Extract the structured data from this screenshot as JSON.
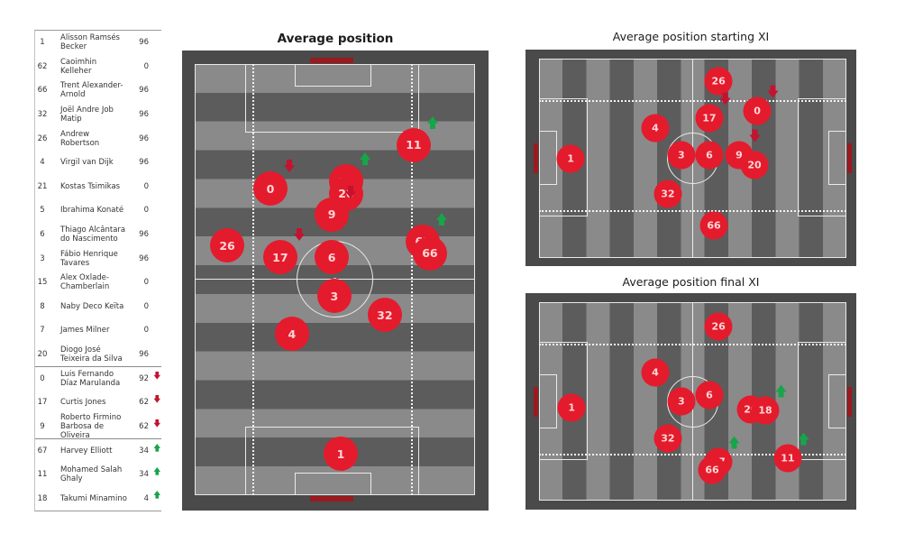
{
  "colors": {
    "circle": "#e41b2c",
    "circle_text": "#ffd6d6",
    "up_arrow": "#17a54a",
    "down_arrow": "#c41230",
    "goal_bar": "#9a1a1f"
  },
  "roster": {
    "rows": [
      {
        "num": "1",
        "name": "Alisson Ramsés Becker",
        "min": "96",
        "trend": "",
        "group": "squad"
      },
      {
        "num": "62",
        "name": "Caoimhin Kelleher",
        "min": "0",
        "trend": "",
        "group": "squad"
      },
      {
        "num": "66",
        "name": "Trent Alexander-Arnold",
        "min": "96",
        "trend": "",
        "group": "squad"
      },
      {
        "num": "32",
        "name": "Joël Andre Job Matip",
        "min": "96",
        "trend": "",
        "group": "squad"
      },
      {
        "num": "26",
        "name": "Andrew Robertson",
        "min": "96",
        "trend": "",
        "group": "squad"
      },
      {
        "num": "4",
        "name": "Virgil van Dijk",
        "min": "96",
        "trend": "",
        "group": "squad"
      },
      {
        "num": "21",
        "name": "Kostas Tsimikas",
        "min": "0",
        "trend": "",
        "group": "squad"
      },
      {
        "num": "5",
        "name": "Ibrahima Konaté",
        "min": "0",
        "trend": "",
        "group": "squad"
      },
      {
        "num": "6",
        "name": "Thiago Alcântara do Nascimento",
        "min": "96",
        "trend": "",
        "group": "squad"
      },
      {
        "num": "3",
        "name": "Fábio Henrique Tavares",
        "min": "96",
        "trend": "",
        "group": "squad"
      },
      {
        "num": "15",
        "name": "Alex Oxlade-Chamberlain",
        "min": "0",
        "trend": "",
        "group": "squad"
      },
      {
        "num": "8",
        "name": "Naby Deco Keïta",
        "min": "0",
        "trend": "",
        "group": "squad"
      },
      {
        "num": "7",
        "name": "James Milner",
        "min": "0",
        "trend": "",
        "group": "squad"
      },
      {
        "num": "20",
        "name": "Diogo José Teixeira da Silva",
        "min": "96",
        "trend": "",
        "group": "squad"
      },
      {
        "num": "0",
        "name": "Luis Fernando Díaz Marulanda",
        "min": "92",
        "trend": "down",
        "group": "subbed-off"
      },
      {
        "num": "17",
        "name": "Curtis Jones",
        "min": "62",
        "trend": "down",
        "group": "subbed-off"
      },
      {
        "num": "9",
        "name": "Roberto Firmino Barbosa de Oliveira",
        "min": "62",
        "trend": "down",
        "group": "subbed-off"
      },
      {
        "num": "67",
        "name": "Harvey Elliott",
        "min": "34",
        "trend": "up",
        "group": "subbed-on"
      },
      {
        "num": "11",
        "name": "Mohamed Salah Ghaly",
        "min": "34",
        "trend": "up",
        "group": "subbed-on"
      },
      {
        "num": "18",
        "name": "Takumi Minamino",
        "min": "4",
        "trend": "up",
        "group": "subbed-on"
      }
    ]
  },
  "chart_data": [
    {
      "type": "scatter",
      "title": "Average position",
      "orientation": "vertical-pitch",
      "x_unit": "percent of pitch width (left to right)",
      "y_unit": "percent of pitch length (own goal at bottom)",
      "points": [
        {
          "label": "11",
          "x": 78.1,
          "y": 18.8,
          "trend": "up"
        },
        {
          "label": "0",
          "x": 27.0,
          "y": 28.9,
          "trend": "down"
        },
        {
          "label": "18",
          "x": 54.0,
          "y": 27.2,
          "trend": "up"
        },
        {
          "label": "20",
          "x": 54.0,
          "y": 30.1,
          "trend": ""
        },
        {
          "label": "9",
          "x": 48.9,
          "y": 34.9,
          "trend": "down"
        },
        {
          "label": "26",
          "x": 11.6,
          "y": 42.1,
          "trend": ""
        },
        {
          "label": "17",
          "x": 30.5,
          "y": 44.8,
          "trend": "down"
        },
        {
          "label": "6",
          "x": 48.9,
          "y": 44.8,
          "trend": ""
        },
        {
          "label": "67",
          "x": 81.4,
          "y": 41.2,
          "trend": "up"
        },
        {
          "label": "66",
          "x": 83.9,
          "y": 43.9,
          "trend": ""
        },
        {
          "label": "3",
          "x": 49.8,
          "y": 53.8,
          "trend": ""
        },
        {
          "label": "32",
          "x": 67.8,
          "y": 58.2,
          "trend": ""
        },
        {
          "label": "4",
          "x": 34.7,
          "y": 62.6,
          "trend": ""
        },
        {
          "label": "1",
          "x": 52.1,
          "y": 90.4,
          "trend": ""
        }
      ]
    },
    {
      "type": "scatter",
      "title": "Average position starting XI",
      "orientation": "horizontal-pitch",
      "x_unit": "percent of pitch length (own goal at left)",
      "y_unit": "percent of pitch width (top to bottom)",
      "points": [
        {
          "label": "26",
          "x": 58.4,
          "y": 11.3,
          "trend": ""
        },
        {
          "label": "4",
          "x": 37.8,
          "y": 34.8,
          "trend": ""
        },
        {
          "label": "17",
          "x": 55.4,
          "y": 29.9,
          "trend": "down"
        },
        {
          "label": "0",
          "x": 71.0,
          "y": 26.2,
          "trend": "down"
        },
        {
          "label": "1",
          "x": 10.3,
          "y": 50.2,
          "trend": ""
        },
        {
          "label": "3",
          "x": 46.3,
          "y": 48.4,
          "trend": ""
        },
        {
          "label": "6",
          "x": 55.4,
          "y": 48.4,
          "trend": ""
        },
        {
          "label": "9",
          "x": 65.1,
          "y": 48.4,
          "trend": "down"
        },
        {
          "label": "20",
          "x": 70.1,
          "y": 53.4,
          "trend": ""
        },
        {
          "label": "32",
          "x": 41.9,
          "y": 67.9,
          "trend": ""
        },
        {
          "label": "66",
          "x": 56.9,
          "y": 83.7,
          "trend": ""
        }
      ]
    },
    {
      "type": "scatter",
      "title": "Average position final XI",
      "orientation": "horizontal-pitch",
      "x_unit": "percent of pitch length (own goal at left)",
      "y_unit": "percent of pitch width (top to bottom)",
      "points": [
        {
          "label": "26",
          "x": 58.4,
          "y": 12.3,
          "trend": ""
        },
        {
          "label": "4",
          "x": 37.8,
          "y": 35.5,
          "trend": ""
        },
        {
          "label": "1",
          "x": 10.6,
          "y": 53.2,
          "trend": ""
        },
        {
          "label": "3",
          "x": 46.3,
          "y": 50.0,
          "trend": ""
        },
        {
          "label": "6",
          "x": 55.4,
          "y": 46.8,
          "trend": ""
        },
        {
          "label": "20",
          "x": 68.9,
          "y": 54.1,
          "trend": ""
        },
        {
          "label": "18",
          "x": 73.6,
          "y": 54.5,
          "trend": "up"
        },
        {
          "label": "32",
          "x": 41.9,
          "y": 68.6,
          "trend": ""
        },
        {
          "label": "67",
          "x": 58.4,
          "y": 80.5,
          "trend": "up"
        },
        {
          "label": "66",
          "x": 56.3,
          "y": 84.5,
          "trend": ""
        },
        {
          "label": "11",
          "x": 80.9,
          "y": 78.6,
          "trend": "up"
        }
      ]
    }
  ]
}
